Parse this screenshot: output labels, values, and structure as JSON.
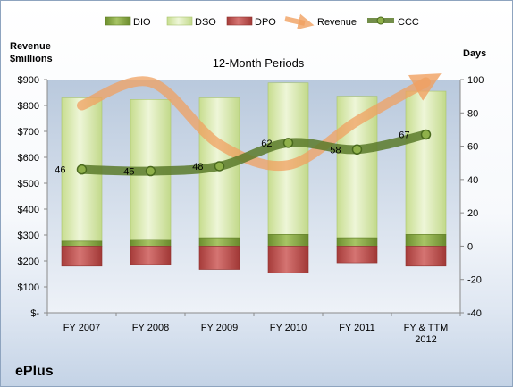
{
  "chart_data": {
    "type": "bar",
    "title": "12-Month Periods",
    "company": "ePlus",
    "left_axis": {
      "label_lines": [
        "Revenue",
        "$millions"
      ],
      "ticks": [
        "$-",
        "$100",
        "$200",
        "$300",
        "$400",
        "$500",
        "$600",
        "$700",
        "$800",
        "$900"
      ],
      "range": [
        0,
        900
      ]
    },
    "right_axis": {
      "label": "Days",
      "ticks": [
        "-40",
        "-20",
        "0",
        "20",
        "40",
        "60",
        "80",
        "100"
      ],
      "range": [
        -40,
        100
      ]
    },
    "categories": [
      [
        "FY 2007"
      ],
      [
        "FY 2008"
      ],
      [
        "FY 2009"
      ],
      [
        "FY 2010"
      ],
      [
        "FY 2011"
      ],
      [
        "FY & TTM",
        "2012"
      ]
    ],
    "series": [
      {
        "name": "DIO",
        "values": [
          3,
          4,
          5,
          7,
          5,
          7
        ],
        "color": "#7c9c3c"
      },
      {
        "name": "DSO",
        "values": [
          86,
          84,
          84,
          91,
          85,
          86
        ],
        "color": "#d4e6a8"
      },
      {
        "name": "DPO",
        "values": [
          -12,
          -11,
          -14,
          -16,
          -10,
          -12
        ],
        "color": "#b94a48"
      },
      {
        "name": "Revenue",
        "values": [
          800,
          890,
          650,
          570,
          740,
          890
        ],
        "color": "#f0a060"
      },
      {
        "name": "CCC",
        "values": [
          46,
          45,
          48,
          62,
          58,
          67
        ],
        "color": "#5a7a2a"
      }
    ],
    "ccc_labels": [
      "46",
      "45",
      "48",
      "62",
      "58",
      "67"
    ],
    "legend_position": "top",
    "grid": false
  }
}
